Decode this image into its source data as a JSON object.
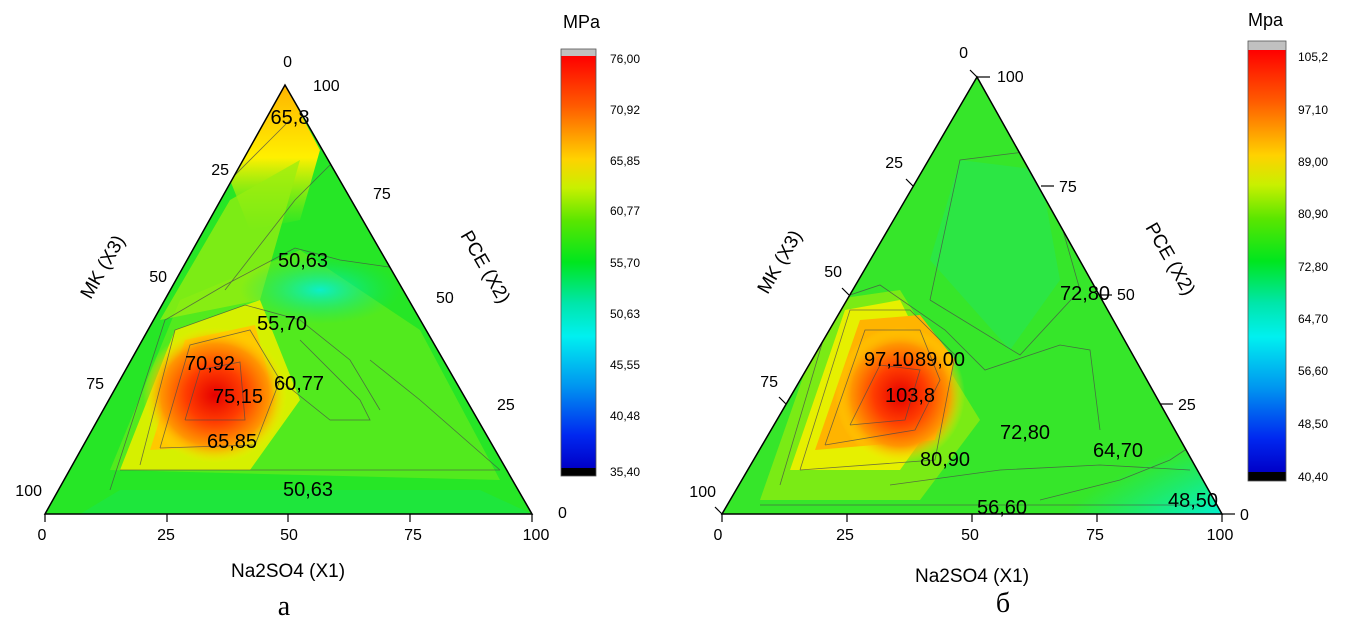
{
  "figure": {
    "panels": [
      {
        "panel_label": "а",
        "unit": "MPa",
        "axis_bottom": {
          "label": "Na2SO4 (X1)",
          "ticks": [
            "0",
            "25",
            "50",
            "75",
            "100"
          ]
        },
        "axis_right": {
          "label": "PCE (X2)",
          "ticks": [
            "100",
            "75",
            "50",
            "25",
            "0"
          ]
        },
        "axis_left": {
          "label": "MK (X3)",
          "ticks": [
            "0",
            "25",
            "50",
            "75",
            "100"
          ]
        },
        "colorbar_ticks": [
          "76,00",
          "70,92",
          "65,85",
          "60,77",
          "55,70",
          "50,63",
          "45,55",
          "40,48",
          "35,40"
        ],
        "contour_labels": [
          "65,8",
          "50,63",
          "55,70",
          "70,92",
          "75,15",
          "60,77",
          "65,85",
          "50,63"
        ]
      },
      {
        "panel_label": "б",
        "unit": "Mpa",
        "axis_bottom": {
          "label": "Na2SO4 (X1)",
          "ticks": [
            "0",
            "25",
            "50",
            "75",
            "100"
          ]
        },
        "axis_right": {
          "label": "PCE (X2)",
          "ticks": [
            "100",
            "75",
            "50",
            "25",
            "0"
          ]
        },
        "axis_left": {
          "label": "MK (X3)",
          "ticks": [
            "0",
            "25",
            "50",
            "75",
            "100"
          ]
        },
        "colorbar_ticks": [
          "105,2",
          "97,10",
          "89,00",
          "80,90",
          "72,80",
          "64,70",
          "56,60",
          "48,50",
          "40,40"
        ],
        "contour_labels": [
          "72,80",
          "97,10",
          "89,00",
          "103,8",
          "72,80",
          "64,70",
          "80,90",
          "56,60",
          "48,50"
        ]
      }
    ]
  },
  "chart_data": [
    {
      "type": "heatmap",
      "subtype": "ternary-contour",
      "panel": "а",
      "colorbar_unit": "MPa",
      "colorbar_range": [
        35.4,
        76.0
      ],
      "colorbar_ticks": [
        76.0,
        70.92,
        65.85,
        60.77,
        55.7,
        50.63,
        45.55,
        40.48,
        35.4
      ],
      "axes": {
        "X1": "Na2SO4 (X1)",
        "X2": "PCE (X2)",
        "X3": "MK (X3)"
      },
      "contour_levels": [
        50.63,
        55.7,
        60.77,
        65.85,
        70.92,
        75.15
      ],
      "labeled_points": [
        {
          "label": "65,8",
          "value": 65.85,
          "X1": 0,
          "X2": 95,
          "X3": 5
        },
        {
          "label": "50,63",
          "value": 50.63,
          "X1": 20,
          "X2": 60,
          "X3": 20
        },
        {
          "label": "55,70",
          "value": 55.7,
          "X1": 25,
          "X2": 45,
          "X3": 30
        },
        {
          "label": "70,92",
          "value": 70.92,
          "X1": 8,
          "X2": 30,
          "X3": 62
        },
        {
          "label": "75,15",
          "value": 75.15,
          "X1": 21,
          "X2": 22,
          "X3": 57
        },
        {
          "label": "60,77",
          "value": 60.77,
          "X1": 36,
          "X2": 29,
          "X3": 35
        },
        {
          "label": "65,85",
          "value": 65.85,
          "X1": 35,
          "X2": 14,
          "X3": 51
        },
        {
          "label": "50,63",
          "value": 50.63,
          "X1": 53,
          "X2": 3,
          "X3": 44
        }
      ]
    },
    {
      "type": "heatmap",
      "subtype": "ternary-contour",
      "panel": "б",
      "colorbar_unit": "Mpa",
      "colorbar_range": [
        40.4,
        105.2
      ],
      "colorbar_ticks": [
        105.2,
        97.1,
        89.0,
        80.9,
        72.8,
        64.7,
        56.6,
        48.5,
        40.4
      ],
      "axes": {
        "X1": "Na2SO4 (X1)",
        "X2": "PCE (X2)",
        "X3": "MK (X3)"
      },
      "contour_levels": [
        48.5,
        56.6,
        64.7,
        72.8,
        80.9,
        89.0,
        97.1,
        103.8
      ],
      "labeled_points": [
        {
          "label": "72,80",
          "value": 72.8,
          "X1": 34,
          "X2": 52,
          "X3": 14
        },
        {
          "label": "97,10",
          "value": 97.1,
          "X1": 8,
          "X2": 36,
          "X3": 56
        },
        {
          "label": "89,00",
          "value": 89.0,
          "X1": 17,
          "X2": 36,
          "X3": 47
        },
        {
          "label": "103,8",
          "value": 103.8,
          "X1": 18,
          "X2": 26,
          "X3": 56
        },
        {
          "label": "72,80",
          "value": 72.8,
          "X1": 36,
          "X2": 18,
          "X3": 46
        },
        {
          "label": "64,70",
          "value": 64.7,
          "X1": 60,
          "X2": 14,
          "X3": 26
        },
        {
          "label": "80,90",
          "value": 80.9,
          "X1": 22,
          "X2": 13,
          "X3": 65
        },
        {
          "label": "56,60",
          "value": 56.6,
          "X1": 47,
          "X2": 2,
          "X3": 51
        },
        {
          "label": "48,50",
          "value": 48.5,
          "X1": 87,
          "X2": 3,
          "X3": 10
        }
      ]
    }
  ]
}
